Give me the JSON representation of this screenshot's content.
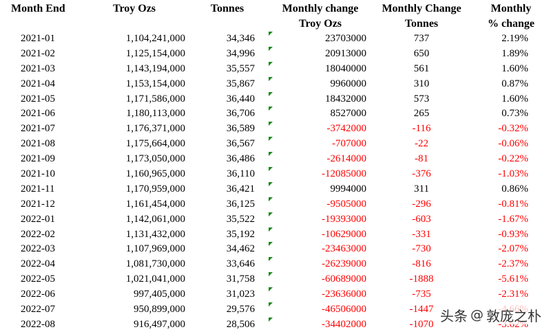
{
  "header": {
    "month_end": "Month End",
    "troy_ozs": "Troy Ozs",
    "tonnes": "Tonnes",
    "monthly_change_line1": "Monthly change",
    "monthly_change_line2": "Troy Ozs",
    "monthly_change_tonnes_line1": "Monthly Change",
    "monthly_change_tonnes_line2": "Tonnes",
    "pct_change_line1": "Monthly",
    "pct_change_line2": "% change"
  },
  "colors": {
    "negative": "#ff0000",
    "marker": "#1a8a1a"
  },
  "rows": [
    {
      "month": "2021-01",
      "troy_ozs": "1,104,241,000",
      "tonnes": "34,346",
      "change_oz": "23703000",
      "change_t": "737",
      "pct": "2.19%",
      "negative": false
    },
    {
      "month": "2021-02",
      "troy_ozs": "1,125,154,000",
      "tonnes": "34,996",
      "change_oz": "20913000",
      "change_t": "650",
      "pct": "1.89%",
      "negative": false
    },
    {
      "month": "2021-03",
      "troy_ozs": "1,143,194,000",
      "tonnes": "35,557",
      "change_oz": "18040000",
      "change_t": "561",
      "pct": "1.60%",
      "negative": false
    },
    {
      "month": "2021-04",
      "troy_ozs": "1,153,154,000",
      "tonnes": "35,867",
      "change_oz": "9960000",
      "change_t": "310",
      "pct": "0.87%",
      "negative": false
    },
    {
      "month": "2021-05",
      "troy_ozs": "1,171,586,000",
      "tonnes": "36,440",
      "change_oz": "18432000",
      "change_t": "573",
      "pct": "1.60%",
      "negative": false
    },
    {
      "month": "2021-06",
      "troy_ozs": "1,180,113,000",
      "tonnes": "36,706",
      "change_oz": "8527000",
      "change_t": "265",
      "pct": "0.73%",
      "negative": false
    },
    {
      "month": "2021-07",
      "troy_ozs": "1,176,371,000",
      "tonnes": "36,589",
      "change_oz": "-3742000",
      "change_t": "-116",
      "pct": "-0.32%",
      "negative": true
    },
    {
      "month": "2021-08",
      "troy_ozs": "1,175,664,000",
      "tonnes": "36,567",
      "change_oz": "-707000",
      "change_t": "-22",
      "pct": "-0.06%",
      "negative": true
    },
    {
      "month": "2021-09",
      "troy_ozs": "1,173,050,000",
      "tonnes": "36,486",
      "change_oz": "-2614000",
      "change_t": "-81",
      "pct": "-0.22%",
      "negative": true
    },
    {
      "month": "2021-10",
      "troy_ozs": "1,160,965,000",
      "tonnes": "36,110",
      "change_oz": "-12085000",
      "change_t": "-376",
      "pct": "-1.03%",
      "negative": true
    },
    {
      "month": "2021-11",
      "troy_ozs": "1,170,959,000",
      "tonnes": "36,421",
      "change_oz": "9994000",
      "change_t": "311",
      "pct": "0.86%",
      "negative": false
    },
    {
      "month": "2021-12",
      "troy_ozs": "1,161,454,000",
      "tonnes": "36,125",
      "change_oz": "-9505000",
      "change_t": "-296",
      "pct": "-0.81%",
      "negative": true
    },
    {
      "month": "2022-01",
      "troy_ozs": "1,142,061,000",
      "tonnes": "35,522",
      "change_oz": "-19393000",
      "change_t": "-603",
      "pct": "-1.67%",
      "negative": true
    },
    {
      "month": "2022-02",
      "troy_ozs": "1,131,432,000",
      "tonnes": "35,192",
      "change_oz": "-10629000",
      "change_t": "-331",
      "pct": "-0.93%",
      "negative": true
    },
    {
      "month": "2022-03",
      "troy_ozs": "1,107,969,000",
      "tonnes": "34,462",
      "change_oz": "-23463000",
      "change_t": "-730",
      "pct": "-2.07%",
      "negative": true
    },
    {
      "month": "2022-04",
      "troy_ozs": "1,081,730,000",
      "tonnes": "33,646",
      "change_oz": "-26239000",
      "change_t": "-816",
      "pct": "-2.37%",
      "negative": true
    },
    {
      "month": "2022-05",
      "troy_ozs": "1,021,041,000",
      "tonnes": "31,758",
      "change_oz": "-60689000",
      "change_t": "-1888",
      "pct": "-5.61%",
      "negative": true
    },
    {
      "month": "2022-06",
      "troy_ozs": "997,405,000",
      "tonnes": "31,023",
      "change_oz": "-23636000",
      "change_t": "-735",
      "pct": "-2.31%",
      "negative": true
    },
    {
      "month": "2022-07",
      "troy_ozs": "950,899,000",
      "tonnes": "29,576",
      "change_oz": "-46506000",
      "change_t": "-1447",
      "pct": "-4.66%",
      "negative": true
    },
    {
      "month": "2022-08",
      "troy_ozs": "916,497,000",
      "tonnes": "28,506",
      "change_oz": "-34402000",
      "change_t": "-1070",
      "pct": "-3.62%",
      "negative": true
    }
  ],
  "watermark": {
    "text": "头条",
    "at": "@",
    "handle": "敦庞之朴"
  }
}
